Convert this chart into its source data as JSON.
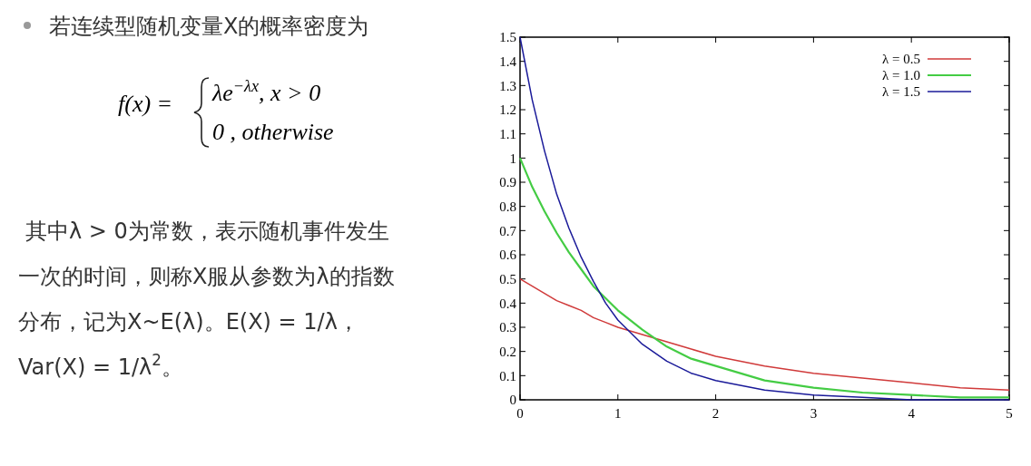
{
  "chart_data": {
    "type": "line",
    "x": [
      0,
      0.125,
      0.25,
      0.375,
      0.5,
      0.625,
      0.75,
      0.875,
      1,
      1.25,
      1.5,
      1.75,
      2,
      2.5,
      3,
      3.5,
      4,
      4.5,
      5
    ],
    "series": [
      {
        "name": "λ = 0.5",
        "color": "#d03a3a",
        "values": [
          0.5,
          0.47,
          0.44,
          0.41,
          0.39,
          0.37,
          0.34,
          0.32,
          0.3,
          0.27,
          0.24,
          0.21,
          0.18,
          0.14,
          0.11,
          0.09,
          0.07,
          0.05,
          0.04
        ]
      },
      {
        "name": "λ = 1.0",
        "color": "#44cc44",
        "values": [
          1,
          0.88,
          0.78,
          0.69,
          0.61,
          0.54,
          0.47,
          0.42,
          0.37,
          0.29,
          0.22,
          0.17,
          0.14,
          0.08,
          0.05,
          0.03,
          0.02,
          0.01,
          0.01
        ]
      },
      {
        "name": "λ = 1.5",
        "color": "#1a1a99",
        "values": [
          1.5,
          1.24,
          1.03,
          0.85,
          0.71,
          0.59,
          0.49,
          0.4,
          0.33,
          0.23,
          0.16,
          0.11,
          0.08,
          0.04,
          0.02,
          0.01,
          0,
          0,
          0
        ]
      }
    ],
    "xlim": [
      0,
      5
    ],
    "xticks": [
      0,
      1,
      2,
      3,
      4,
      5
    ],
    "ylim": [
      0,
      1.5
    ],
    "yticks": [
      0,
      0.1,
      0.2,
      0.3,
      0.4,
      0.5,
      0.6,
      0.7,
      0.8,
      0.9,
      1,
      1.1,
      1.2,
      1.3,
      1.4,
      1.5
    ],
    "grid": false,
    "legend": "top right",
    "marker": "none",
    "line_style": "solid",
    "annotations": [
      "若连续型随机变量X的概率密度为",
      "f(x) =",
      "λe$^{−λx}$, x > 0",
      "0       , otherwise",
      "其中λ > 0为常数，表示随机事件发生",
      "一次的时间，则称X服从参数为λ的指数",
      "分布，记为X~E(λ)。E(X) = 1/λ，",
      "Var(X) = 1/λ$^{2}$。"
    ]
  }
}
